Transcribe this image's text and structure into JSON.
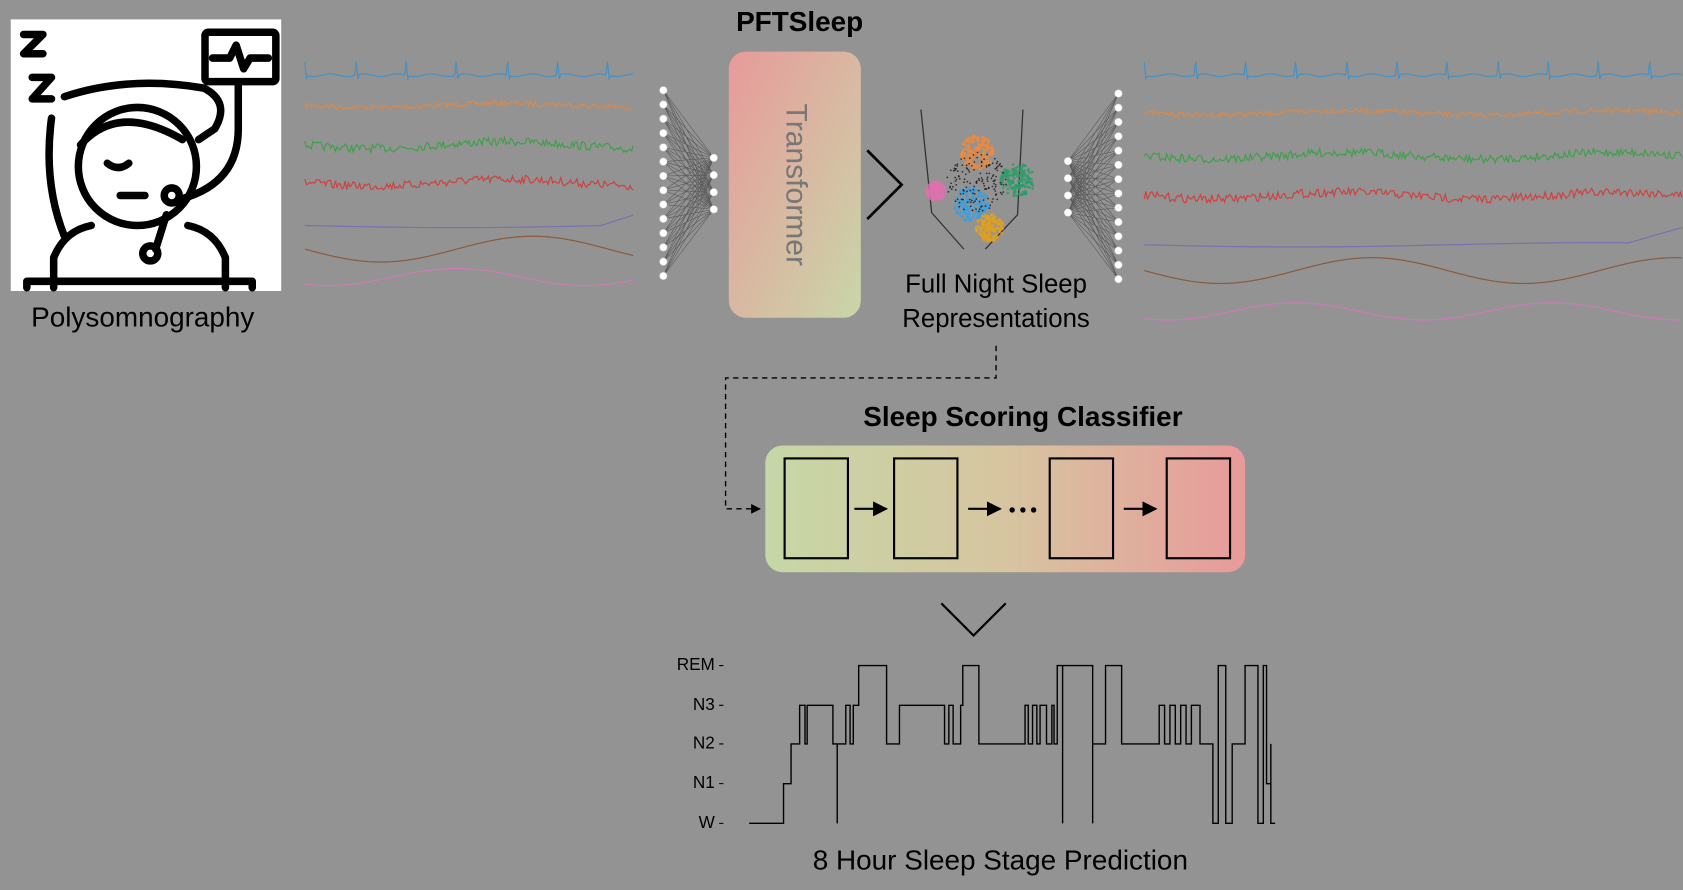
{
  "header": {
    "title": "PFTSleep"
  },
  "input": {
    "label": "Polysomnography"
  },
  "encoder": {
    "label": "Transformer"
  },
  "representations": {
    "lines": [
      "Full Night Sleep",
      "Representations"
    ]
  },
  "classifier": {
    "title": "Sleep Scoring Classifier"
  },
  "prediction": {
    "stages": [
      "REM",
      "N3",
      "N2",
      "N1",
      "W"
    ],
    "caption": "8 Hour Sleep Stage Prediction"
  }
}
